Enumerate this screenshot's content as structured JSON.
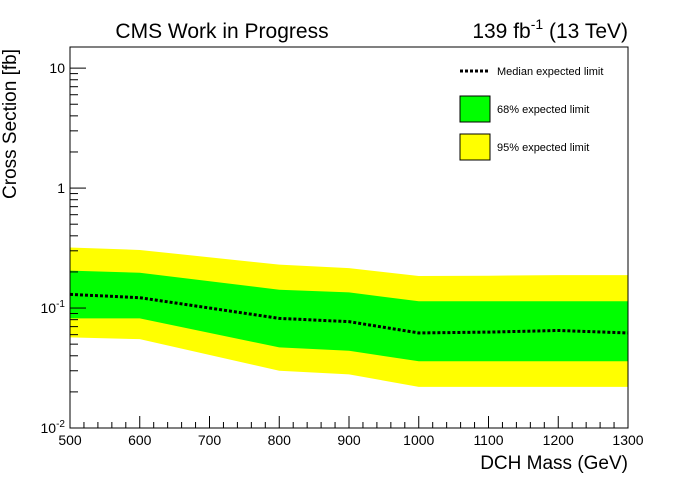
{
  "chart_data": {
    "type": "line",
    "title": "CMS Work in Progress",
    "luminosity": "139 fb",
    "luminosity_exponent": "-1",
    "energy": " (13 TeV)",
    "xlabel": "DCH Mass (GeV)",
    "ylabel": "Cross Section [fb]",
    "xlim": [
      500,
      1300
    ],
    "ylim": [
      0.01,
      15
    ],
    "y_scale": "log",
    "grid": false,
    "legend_position": "top-right",
    "x_ticks": [
      "500",
      "600",
      "700",
      "800",
      "900",
      "1000",
      "1100",
      "1200",
      "1300"
    ],
    "y_ticks": [
      {
        "value": 0.01,
        "base": "10",
        "exp": "-2"
      },
      {
        "value": 0.1,
        "base": "10",
        "exp": "-1"
      },
      {
        "value": 1,
        "label": "1"
      },
      {
        "value": 10,
        "label": "10"
      }
    ],
    "x": [
      500,
      600,
      800,
      900,
      1000,
      1100,
      1200,
      1300
    ],
    "series": [
      {
        "name": "Median expected limit",
        "style": "dotted",
        "color": "#000000",
        "values": [
          0.13,
          0.122,
          0.082,
          0.077,
          0.062,
          0.063,
          0.065,
          0.062
        ]
      },
      {
        "name": "68% expected limit",
        "style": "band",
        "color": "#00ff00",
        "lower": [
          0.082,
          0.082,
          0.047,
          0.044,
          0.036,
          0.036,
          0.036,
          0.036
        ],
        "upper": [
          0.205,
          0.197,
          0.142,
          0.135,
          0.114,
          0.114,
          0.114,
          0.114
        ]
      },
      {
        "name": "95% expected limit",
        "style": "band",
        "color": "#ffff00",
        "lower": [
          0.057,
          0.055,
          0.03,
          0.028,
          0.022,
          0.022,
          0.022,
          0.022
        ],
        "upper": [
          0.32,
          0.305,
          0.23,
          0.215,
          0.185,
          0.186,
          0.188,
          0.188
        ]
      }
    ]
  }
}
